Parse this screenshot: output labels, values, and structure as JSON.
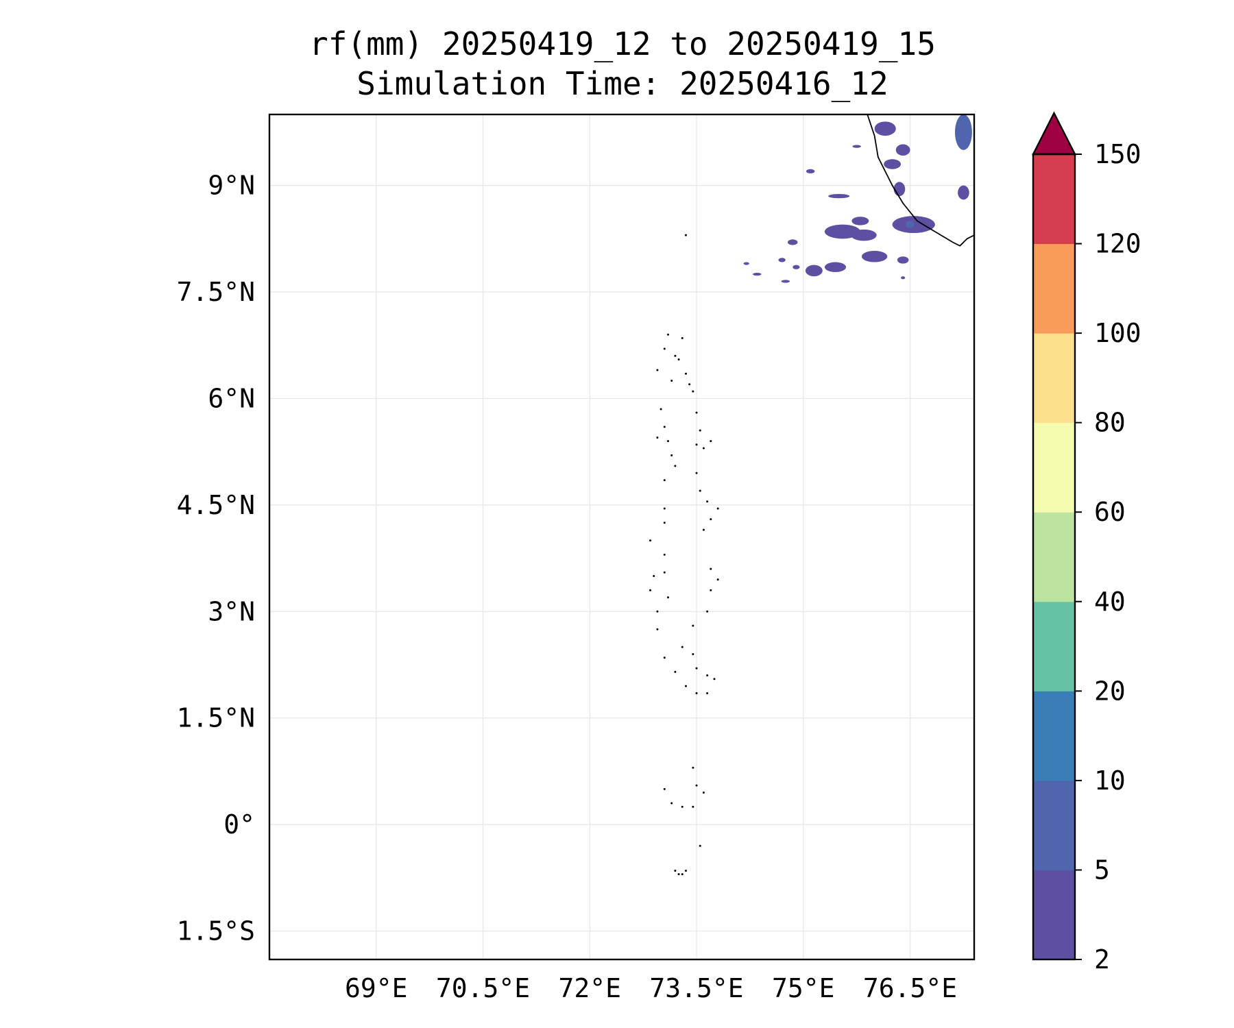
{
  "title": {
    "line1": "rf(mm) 20250419_12 to 20250419_15",
    "line2": "Simulation Time: 20250416_12"
  },
  "map": {
    "lon_range": [
      67.5,
      77.4
    ],
    "lat_range": [
      -1.9,
      10.0
    ],
    "lon_ticks": [
      69.0,
      70.5,
      72.0,
      73.5,
      75.0,
      76.5
    ],
    "lon_tick_labels": [
      "69°E",
      "70.5°E",
      "72°E",
      "73.5°E",
      "75°E",
      "76.5°E"
    ],
    "lat_ticks": [
      9.0,
      7.5,
      6.0,
      4.5,
      3.0,
      1.5,
      0.0,
      -1.5
    ],
    "lat_tick_labels": [
      "9°N",
      "7.5°N",
      "6°N",
      "4.5°N",
      "3°N",
      "1.5°N",
      "0°",
      "1.5°S"
    ],
    "gridlines": true,
    "grid_color": "#e6e6e6",
    "coastline_color": "#000000",
    "coastline_india": [
      [
        75.9,
        10.0
      ],
      [
        76.0,
        9.7
      ],
      [
        76.05,
        9.4
      ],
      [
        76.25,
        9.0
      ],
      [
        76.4,
        8.75
      ],
      [
        76.6,
        8.5
      ],
      [
        76.85,
        8.35
      ],
      [
        77.1,
        8.2
      ],
      [
        77.2,
        8.15
      ],
      [
        77.3,
        8.25
      ],
      [
        77.4,
        8.3
      ]
    ],
    "islands": [
      [
        73.35,
        8.3
      ],
      [
        73.1,
        6.9
      ],
      [
        73.3,
        6.85
      ],
      [
        73.05,
        6.7
      ],
      [
        73.2,
        6.6
      ],
      [
        73.25,
        6.55
      ],
      [
        73.35,
        6.35
      ],
      [
        73.4,
        6.2
      ],
      [
        72.95,
        6.4
      ],
      [
        73.15,
        6.25
      ],
      [
        73.45,
        6.1
      ],
      [
        73.0,
        5.85
      ],
      [
        73.05,
        5.6
      ],
      [
        73.1,
        5.4
      ],
      [
        73.5,
        5.8
      ],
      [
        73.55,
        5.55
      ],
      [
        73.5,
        5.35
      ],
      [
        73.6,
        5.3
      ],
      [
        73.7,
        5.4
      ],
      [
        72.95,
        5.45
      ],
      [
        73.15,
        5.2
      ],
      [
        73.2,
        5.05
      ],
      [
        73.05,
        4.85
      ],
      [
        73.5,
        4.95
      ],
      [
        73.55,
        4.7
      ],
      [
        73.65,
        4.55
      ],
      [
        73.8,
        4.45
      ],
      [
        73.7,
        4.3
      ],
      [
        73.6,
        4.15
      ],
      [
        73.05,
        4.45
      ],
      [
        73.05,
        4.25
      ],
      [
        72.85,
        4.0
      ],
      [
        73.05,
        3.8
      ],
      [
        72.9,
        3.5
      ],
      [
        73.05,
        3.55
      ],
      [
        72.85,
        3.3
      ],
      [
        73.1,
        3.2
      ],
      [
        72.95,
        3.0
      ],
      [
        72.95,
        2.75
      ],
      [
        73.45,
        2.8
      ],
      [
        73.65,
        3.0
      ],
      [
        73.7,
        3.3
      ],
      [
        73.7,
        3.6
      ],
      [
        73.8,
        3.45
      ],
      [
        73.3,
        2.5
      ],
      [
        73.45,
        2.4
      ],
      [
        73.5,
        2.2
      ],
      [
        73.05,
        2.35
      ],
      [
        73.2,
        2.15
      ],
      [
        73.35,
        1.95
      ],
      [
        73.5,
        1.85
      ],
      [
        73.65,
        1.85
      ],
      [
        73.75,
        2.05
      ],
      [
        73.65,
        2.1
      ],
      [
        73.45,
        0.8
      ],
      [
        73.5,
        0.55
      ],
      [
        73.6,
        0.45
      ],
      [
        73.05,
        0.5
      ],
      [
        73.15,
        0.3
      ],
      [
        73.3,
        0.25
      ],
      [
        73.45,
        0.25
      ],
      [
        73.55,
        -0.3
      ],
      [
        73.2,
        -0.65
      ],
      [
        73.25,
        -0.7
      ],
      [
        73.3,
        -0.7
      ],
      [
        73.35,
        -0.65
      ]
    ],
    "rain_patches": [
      {
        "lon": 76.15,
        "lat": 9.8,
        "rx": 0.15,
        "ry": 0.1,
        "level": 1
      },
      {
        "lon": 76.4,
        "lat": 9.5,
        "rx": 0.1,
        "ry": 0.08,
        "level": 1
      },
      {
        "lon": 76.25,
        "lat": 9.3,
        "rx": 0.12,
        "ry": 0.07,
        "level": 1
      },
      {
        "lon": 76.35,
        "lat": 8.95,
        "rx": 0.08,
        "ry": 0.1,
        "level": 1
      },
      {
        "lon": 76.55,
        "lat": 8.45,
        "rx": 0.3,
        "ry": 0.12,
        "level": 1
      },
      {
        "lon": 76.5,
        "lat": 8.45,
        "rx": 0.06,
        "ry": 0.05,
        "level": 2
      },
      {
        "lon": 77.25,
        "lat": 9.75,
        "rx": 0.12,
        "ry": 0.25,
        "level": 2
      },
      {
        "lon": 77.25,
        "lat": 8.9,
        "rx": 0.08,
        "ry": 0.1,
        "level": 1
      },
      {
        "lon": 75.1,
        "lat": 9.2,
        "rx": 0.06,
        "ry": 0.03,
        "level": 1
      },
      {
        "lon": 75.5,
        "lat": 8.85,
        "rx": 0.15,
        "ry": 0.03,
        "level": 1
      },
      {
        "lon": 75.8,
        "lat": 8.5,
        "rx": 0.12,
        "ry": 0.06,
        "level": 1
      },
      {
        "lon": 75.55,
        "lat": 8.35,
        "rx": 0.25,
        "ry": 0.1,
        "level": 1
      },
      {
        "lon": 75.85,
        "lat": 8.3,
        "rx": 0.18,
        "ry": 0.08,
        "level": 1
      },
      {
        "lon": 76.0,
        "lat": 8.0,
        "rx": 0.18,
        "ry": 0.08,
        "level": 1
      },
      {
        "lon": 75.45,
        "lat": 7.85,
        "rx": 0.15,
        "ry": 0.07,
        "level": 1
      },
      {
        "lon": 75.15,
        "lat": 7.8,
        "rx": 0.12,
        "ry": 0.08,
        "level": 1
      },
      {
        "lon": 74.9,
        "lat": 7.85,
        "rx": 0.05,
        "ry": 0.03,
        "level": 1
      },
      {
        "lon": 74.7,
        "lat": 7.95,
        "rx": 0.05,
        "ry": 0.03,
        "level": 1
      },
      {
        "lon": 74.85,
        "lat": 8.2,
        "rx": 0.07,
        "ry": 0.04,
        "level": 1
      },
      {
        "lon": 74.35,
        "lat": 7.75,
        "rx": 0.06,
        "ry": 0.02,
        "level": 1
      },
      {
        "lon": 74.2,
        "lat": 7.9,
        "rx": 0.04,
        "ry": 0.02,
        "level": 1
      },
      {
        "lon": 74.75,
        "lat": 7.65,
        "rx": 0.06,
        "ry": 0.02,
        "level": 1
      },
      {
        "lon": 76.4,
        "lat": 7.95,
        "rx": 0.08,
        "ry": 0.05,
        "level": 1
      },
      {
        "lon": 76.4,
        "lat": 7.7,
        "rx": 0.03,
        "ry": 0.02,
        "level": 1
      },
      {
        "lon": 75.75,
        "lat": 9.55,
        "rx": 0.06,
        "ry": 0.02,
        "level": 1
      }
    ]
  },
  "colorbar": {
    "boundaries": [
      2,
      5,
      10,
      20,
      40,
      60,
      80,
      100,
      120,
      150
    ],
    "labels": [
      "2",
      "5",
      "10",
      "20",
      "40",
      "60",
      "80",
      "100",
      "120",
      "150"
    ],
    "colors": [
      "#5e4fa2",
      "#4f65ad",
      "#3a7eb8",
      "#66c2a5",
      "#bde3a0",
      "#f4fbaf",
      "#fde08c",
      "#f99c59",
      "#d53e4f"
    ],
    "extend_color": "#9e0142",
    "extend": "max"
  }
}
